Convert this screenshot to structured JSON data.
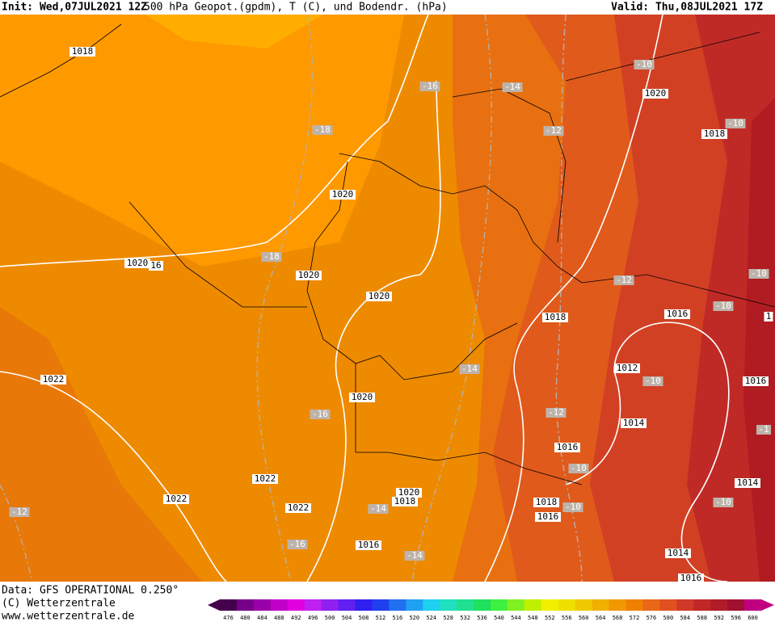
{
  "header": {
    "init": "Init: Wed,07JUL2021 12Z",
    "title": "500 hPa Geopot.(gpdm), T (C), und Bodendr. (hPa)",
    "valid": "Valid: Thu,08JUL2021 17Z"
  },
  "pressure_labels": [
    "1018",
    "1020",
    "1018",
    "1020",
    "1020",
    "16",
    "1020",
    "1020",
    "1018",
    "1016",
    "1022",
    "1012",
    "1016",
    "1020",
    "1014",
    "1016",
    "1022",
    "1014",
    "1022",
    "1020",
    "1018",
    "1018",
    "1016",
    "1022",
    "1016",
    "1014",
    "1016",
    "1"
  ],
  "temperature_labels": [
    "-10",
    "-16",
    "-14",
    "-18",
    "-12",
    "-10",
    "-18",
    "-12",
    "-10",
    "-10",
    "-14",
    "-10",
    "-16",
    "-12",
    "-10",
    "-12",
    "-14",
    "-10",
    "-10",
    "-16",
    "-14",
    "-1"
  ],
  "footer": {
    "data": "Data: GFS OPERATIONAL 0.250°",
    "copyright": "(C) Wetterzentrale",
    "url": "www.wetterzentrale.de"
  },
  "colorbar": {
    "labels": [
      476,
      480,
      484,
      488,
      492,
      496,
      500,
      504,
      508,
      512,
      516,
      520,
      524,
      528,
      532,
      536,
      540,
      544,
      548,
      552,
      556,
      560,
      564,
      568,
      572,
      576,
      580,
      584,
      588,
      592,
      596,
      600
    ],
    "colors": [
      "#44004c",
      "#770088",
      "#9a00a8",
      "#c000c8",
      "#e000e0",
      "#c020f0",
      "#9020f0",
      "#6020f0",
      "#3020f0",
      "#2040f0",
      "#2070f0",
      "#20a0f0",
      "#20d0f0",
      "#20e0c0",
      "#20e090",
      "#20e060",
      "#40f040",
      "#80f020",
      "#c0f000",
      "#f0f000",
      "#f0e000",
      "#f0c800",
      "#f0b000",
      "#f09800",
      "#f08000",
      "#e86818",
      "#e05020",
      "#d03828",
      "#c02828",
      "#b01c28",
      "#a01030",
      "#c00080"
    ]
  }
}
